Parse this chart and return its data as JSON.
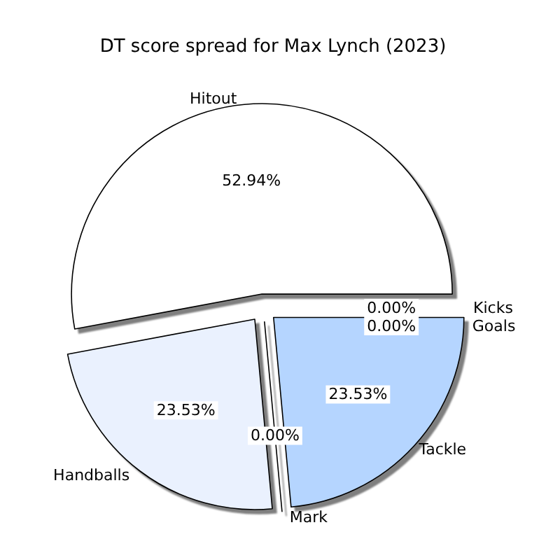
{
  "chart_data": {
    "type": "pie",
    "title": "DT score spread for Max Lynch (2023)",
    "categories": [
      "Hitout",
      "Handballs",
      "Mark",
      "Tackle",
      "Kicks",
      "Goals"
    ],
    "values": [
      52.94,
      23.53,
      0,
      23.53,
      0,
      0
    ],
    "value_labels": [
      "52.94%",
      "23.53%",
      "0.00%",
      "23.53%",
      "0.00%",
      "0.00%"
    ],
    "colors": [
      "#ffffff",
      "#eaf1fe",
      "#dce8fd",
      "#b5d5ff",
      "#f7faff",
      "#f2f6fe"
    ]
  }
}
